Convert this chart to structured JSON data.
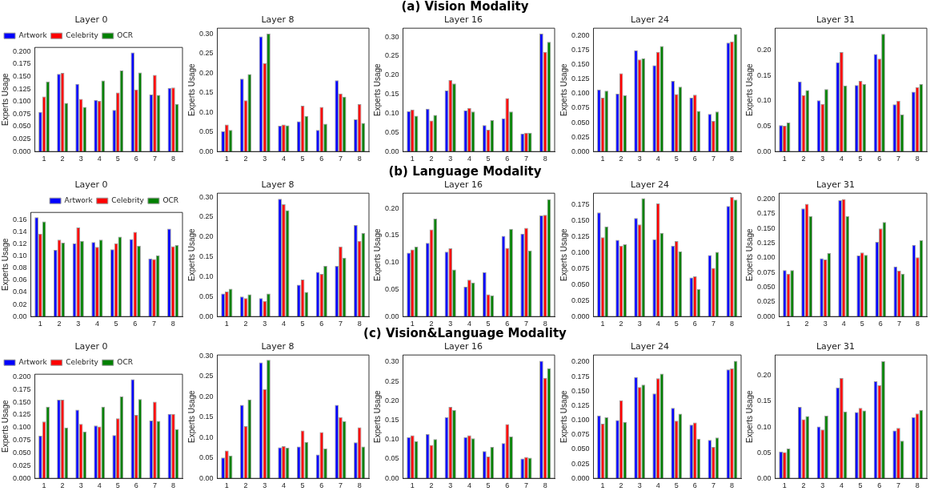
{
  "chart_data": [
    {
      "type": "bar",
      "title": "Layer 0",
      "ylabel": "Experts Usage",
      "categories": [
        "1",
        "2",
        "3",
        "4",
        "5",
        "6",
        "7",
        "8"
      ],
      "legend": "top left",
      "ylim": [
        0,
        0.208
      ],
      "yticks": [
        {
          "value": 0,
          "label": "0.000"
        },
        {
          "value": 0.025,
          "label": "0.025"
        },
        {
          "value": 0.05,
          "label": "0.050"
        },
        {
          "value": 0.075,
          "label": "0.075"
        },
        {
          "value": 0.1,
          "label": "0.100"
        },
        {
          "value": 0.125,
          "label": "0.125"
        },
        {
          "value": 0.15,
          "label": "0.150"
        },
        {
          "value": 0.175,
          "label": "0.175"
        },
        {
          "value": 0.2,
          "label": "0.200"
        }
      ],
      "series": [
        {
          "name": "Artwork",
          "color": "#0000ff",
          "values": [
            0.079,
            0.155,
            0.135,
            0.103,
            0.083,
            0.198,
            0.114,
            0.127
          ]
        },
        {
          "name": "Celebrity",
          "color": "#ff0000",
          "values": [
            0.11,
            0.157,
            0.105,
            0.101,
            0.118,
            0.124,
            0.153,
            0.128
          ]
        },
        {
          "name": "OCR",
          "color": "#008000",
          "values": [
            0.14,
            0.097,
            0.089,
            0.142,
            0.162,
            0.158,
            0.113,
            0.095
          ]
        }
      ]
    },
    {
      "type": "bar",
      "title": "Layer 8",
      "ylabel": "Experts Usage",
      "categories": [
        "1",
        "2",
        "3",
        "4",
        "5",
        "6",
        "7",
        "8"
      ],
      "ylim": [
        0,
        0.315
      ],
      "yticks": [
        {
          "value": 0,
          "label": "0.00"
        },
        {
          "value": 0.05,
          "label": "0.05"
        },
        {
          "value": 0.1,
          "label": "0.10"
        },
        {
          "value": 0.15,
          "label": "0.15"
        },
        {
          "value": 0.2,
          "label": "0.20"
        },
        {
          "value": 0.25,
          "label": "0.25"
        },
        {
          "value": 0.3,
          "label": "0.30"
        }
      ],
      "series": [
        {
          "color": "#0000ff",
          "values": [
            0.052,
            0.186,
            0.294,
            0.066,
            0.077,
            0.055,
            0.182,
            0.082
          ]
        },
        {
          "color": "#ff0000",
          "values": [
            0.069,
            0.131,
            0.226,
            0.069,
            0.117,
            0.114,
            0.148,
            0.121
          ]
        },
        {
          "color": "#008000",
          "values": [
            0.055,
            0.198,
            0.301,
            0.067,
            0.091,
            0.071,
            0.14,
            0.073
          ]
        }
      ]
    },
    {
      "type": "bar",
      "title": "Layer 16",
      "annotations": [
        "(a) Vision Modality"
      ],
      "ylabel": "Experts Usage",
      "categories": [
        "1",
        "2",
        "3",
        "4",
        "5",
        "6",
        "7",
        "8"
      ],
      "ylim": [
        0,
        0.323
      ],
      "yticks": [
        {
          "value": 0,
          "label": "0.00"
        },
        {
          "value": 0.05,
          "label": "0.05"
        },
        {
          "value": 0.1,
          "label": "0.10"
        },
        {
          "value": 0.15,
          "label": "0.15"
        },
        {
          "value": 0.2,
          "label": "0.20"
        },
        {
          "value": 0.25,
          "label": "0.25"
        },
        {
          "value": 0.3,
          "label": "0.30"
        }
      ],
      "series": [
        {
          "color": "#0000ff",
          "values": [
            0.106,
            0.112,
            0.16,
            0.108,
            0.069,
            0.087,
            0.047,
            0.309
          ]
        },
        {
          "color": "#ff0000",
          "values": [
            0.11,
            0.081,
            0.187,
            0.114,
            0.057,
            0.14,
            0.049,
            0.261
          ]
        },
        {
          "color": "#008000",
          "values": [
            0.094,
            0.096,
            0.178,
            0.105,
            0.082,
            0.105,
            0.049,
            0.287
          ]
        }
      ]
    },
    {
      "type": "bar",
      "title": "Layer 24",
      "ylabel": "Experts Usage",
      "categories": [
        "1",
        "2",
        "3",
        "4",
        "5",
        "6",
        "7",
        "8"
      ],
      "ylim": [
        0,
        0.213
      ],
      "yticks": [
        {
          "value": 0,
          "label": "0.000"
        },
        {
          "value": 0.025,
          "label": "0.025"
        },
        {
          "value": 0.05,
          "label": "0.050"
        },
        {
          "value": 0.075,
          "label": "0.075"
        },
        {
          "value": 0.1,
          "label": "0.100"
        },
        {
          "value": 0.125,
          "label": "0.125"
        },
        {
          "value": 0.15,
          "label": "0.150"
        },
        {
          "value": 0.175,
          "label": "0.175"
        },
        {
          "value": 0.2,
          "label": "0.200"
        }
      ],
      "series": [
        {
          "color": "#0000ff",
          "values": [
            0.107,
            0.1,
            0.175,
            0.149,
            0.122,
            0.093,
            0.065,
            0.188
          ]
        },
        {
          "color": "#ff0000",
          "values": [
            0.093,
            0.135,
            0.159,
            0.172,
            0.099,
            0.098,
            0.053,
            0.19
          ]
        },
        {
          "color": "#008000",
          "values": [
            0.105,
            0.097,
            0.161,
            0.182,
            0.112,
            0.07,
            0.069,
            0.203
          ]
        }
      ]
    },
    {
      "type": "bar",
      "title": "Layer 31",
      "ylabel": "Experts Usage",
      "categories": [
        "1",
        "2",
        "3",
        "4",
        "5",
        "6",
        "7",
        "8"
      ],
      "ylim": [
        0,
        0.243
      ],
      "yticks": [
        {
          "value": 0,
          "label": "0.00"
        },
        {
          "value": 0.05,
          "label": "0.05"
        },
        {
          "value": 0.1,
          "label": "0.10"
        },
        {
          "value": 0.15,
          "label": "0.15"
        },
        {
          "value": 0.2,
          "label": "0.20"
        }
      ],
      "series": [
        {
          "color": "#0000ff",
          "values": [
            0.052,
            0.138,
            0.101,
            0.176,
            0.131,
            0.192,
            0.093,
            0.118
          ]
        },
        {
          "color": "#ff0000",
          "values": [
            0.051,
            0.111,
            0.094,
            0.196,
            0.139,
            0.183,
            0.1,
            0.127
          ]
        },
        {
          "color": "#008000",
          "values": [
            0.057,
            0.121,
            0.123,
            0.13,
            0.133,
            0.232,
            0.073,
            0.133
          ]
        }
      ]
    },
    {
      "type": "bar",
      "title": "Layer 0",
      "ylabel": "Experts Usage",
      "categories": [
        "1",
        "2",
        "3",
        "4",
        "5",
        "6",
        "7",
        "8"
      ],
      "legend": "top right",
      "ylim": [
        0,
        0.172
      ],
      "yticks": [
        {
          "value": 0,
          "label": "0.00"
        },
        {
          "value": 0.02,
          "label": "0.02"
        },
        {
          "value": 0.04,
          "label": "0.04"
        },
        {
          "value": 0.06,
          "label": "0.06"
        },
        {
          "value": 0.08,
          "label": "0.08"
        },
        {
          "value": 0.1,
          "label": "0.10"
        },
        {
          "value": 0.12,
          "label": "0.12"
        },
        {
          "value": 0.14,
          "label": "0.14"
        },
        {
          "value": 0.16,
          "label": "0.16"
        }
      ],
      "series": [
        {
          "name": "Artwork",
          "color": "#0000ff",
          "values": [
            0.164,
            0.11,
            0.121,
            0.123,
            0.111,
            0.128,
            0.096,
            0.145
          ]
        },
        {
          "name": "Celebrity",
          "color": "#ff0000",
          "values": [
            0.137,
            0.127,
            0.147,
            0.115,
            0.121,
            0.14,
            0.095,
            0.116
          ]
        },
        {
          "name": "OCR",
          "color": "#008000",
          "values": [
            0.157,
            0.122,
            0.125,
            0.127,
            0.132,
            0.117,
            0.101,
            0.118
          ]
        }
      ]
    },
    {
      "type": "bar",
      "title": "Layer 8",
      "ylabel": "Experts Usage",
      "categories": [
        "1",
        "2",
        "3",
        "4",
        "5",
        "6",
        "7",
        "8"
      ],
      "ylim": [
        0,
        0.31
      ],
      "yticks": [
        {
          "value": 0,
          "label": "0.00"
        },
        {
          "value": 0.05,
          "label": "0.05"
        },
        {
          "value": 0.1,
          "label": "0.10"
        },
        {
          "value": 0.15,
          "label": "0.15"
        },
        {
          "value": 0.2,
          "label": "0.20"
        },
        {
          "value": 0.25,
          "label": "0.25"
        },
        {
          "value": 0.3,
          "label": "0.30"
        }
      ],
      "series": [
        {
          "color": "#0000ff",
          "values": [
            0.058,
            0.05,
            0.046,
            0.296,
            0.08,
            0.112,
            0.127,
            0.23
          ]
        },
        {
          "color": "#ff0000",
          "values": [
            0.063,
            0.046,
            0.039,
            0.282,
            0.093,
            0.107,
            0.176,
            0.19
          ]
        },
        {
          "color": "#008000",
          "values": [
            0.07,
            0.056,
            0.058,
            0.267,
            0.062,
            0.127,
            0.148,
            0.21
          ]
        }
      ]
    },
    {
      "type": "bar",
      "title": "Layer 16",
      "annotations": [
        "(b) Language Modality"
      ],
      "ylabel": "Experts Usage",
      "categories": [
        "1",
        "2",
        "3",
        "4",
        "5",
        "6",
        "7",
        "8"
      ],
      "ylim": [
        0,
        0.228
      ],
      "yticks": [
        {
          "value": 0,
          "label": "0.00"
        },
        {
          "value": 0.05,
          "label": "0.05"
        },
        {
          "value": 0.1,
          "label": "0.10"
        },
        {
          "value": 0.15,
          "label": "0.15"
        },
        {
          "value": 0.2,
          "label": "0.20"
        }
      ],
      "series": [
        {
          "color": "#0000ff",
          "values": [
            0.118,
            0.136,
            0.12,
            0.055,
            0.082,
            0.149,
            0.153,
            0.187
          ]
        },
        {
          "color": "#ff0000",
          "values": [
            0.124,
            0.161,
            0.126,
            0.068,
            0.041,
            0.127,
            0.164,
            0.188
          ]
        },
        {
          "color": "#008000",
          "values": [
            0.129,
            0.181,
            0.087,
            0.063,
            0.039,
            0.162,
            0.122,
            0.217
          ]
        }
      ]
    },
    {
      "type": "bar",
      "title": "Layer 24",
      "ylabel": "Experts Usage",
      "categories": [
        "1",
        "2",
        "3",
        "4",
        "5",
        "6",
        "7",
        "8"
      ],
      "ylim": [
        0,
        0.193
      ],
      "yticks": [
        {
          "value": 0,
          "label": "0.000"
        },
        {
          "value": 0.025,
          "label": "0.025"
        },
        {
          "value": 0.05,
          "label": "0.050"
        },
        {
          "value": 0.075,
          "label": "0.075"
        },
        {
          "value": 0.1,
          "label": "0.100"
        },
        {
          "value": 0.125,
          "label": "0.125"
        },
        {
          "value": 0.15,
          "label": "0.150"
        },
        {
          "value": 0.175,
          "label": "0.175"
        }
      ],
      "series": [
        {
          "color": "#0000ff",
          "values": [
            0.163,
            0.12,
            0.154,
            0.121,
            0.111,
            0.061,
            0.096,
            0.173
          ]
        },
        {
          "color": "#ff0000",
          "values": [
            0.124,
            0.111,
            0.144,
            0.177,
            0.118,
            0.063,
            0.076,
            0.187
          ]
        },
        {
          "color": "#008000",
          "values": [
            0.141,
            0.113,
            0.185,
            0.131,
            0.102,
            0.043,
            0.101,
            0.183
          ]
        }
      ]
    },
    {
      "type": "bar",
      "title": "Layer 31",
      "ylabel": "Experts Usage",
      "categories": [
        "1",
        "2",
        "3",
        "4",
        "5",
        "6",
        "7",
        "8"
      ],
      "ylim": [
        0,
        0.21
      ],
      "yticks": [
        {
          "value": 0,
          "label": "0.000"
        },
        {
          "value": 0.025,
          "label": "0.025"
        },
        {
          "value": 0.05,
          "label": "0.050"
        },
        {
          "value": 0.075,
          "label": "0.075"
        },
        {
          "value": 0.1,
          "label": "0.100"
        },
        {
          "value": 0.125,
          "label": "0.125"
        },
        {
          "value": 0.15,
          "label": "0.150"
        },
        {
          "value": 0.175,
          "label": "0.175"
        },
        {
          "value": 0.2,
          "label": "0.200"
        }
      ],
      "series": [
        {
          "color": "#0000ff",
          "values": [
            0.079,
            0.184,
            0.099,
            0.198,
            0.104,
            0.127,
            0.085,
            0.122
          ]
        },
        {
          "color": "#ff0000",
          "values": [
            0.073,
            0.192,
            0.097,
            0.2,
            0.109,
            0.15,
            0.078,
            0.101
          ]
        },
        {
          "color": "#008000",
          "values": [
            0.079,
            0.171,
            0.108,
            0.171,
            0.105,
            0.161,
            0.073,
            0.13
          ]
        }
      ]
    },
    {
      "type": "bar",
      "title": "Layer 0",
      "ylabel": "Experts Usage",
      "categories": [
        "1",
        "2",
        "3",
        "4",
        "5",
        "6",
        "7",
        "8"
      ],
      "legend": "top left",
      "ylim": [
        0,
        0.205
      ],
      "yticks": [
        {
          "value": 0,
          "label": "0.000"
        },
        {
          "value": 0.025,
          "label": "0.025"
        },
        {
          "value": 0.05,
          "label": "0.050"
        },
        {
          "value": 0.075,
          "label": "0.075"
        },
        {
          "value": 0.1,
          "label": "0.100"
        },
        {
          "value": 0.125,
          "label": "0.125"
        },
        {
          "value": 0.15,
          "label": "0.150"
        },
        {
          "value": 0.175,
          "label": "0.175"
        },
        {
          "value": 0.2,
          "label": "0.200"
        }
      ],
      "series": [
        {
          "name": "Artwork",
          "color": "#0000ff",
          "values": [
            0.084,
            0.155,
            0.135,
            0.104,
            0.085,
            0.195,
            0.114,
            0.127
          ]
        },
        {
          "name": "Celebrity",
          "color": "#ff0000",
          "values": [
            0.112,
            0.155,
            0.107,
            0.102,
            0.118,
            0.125,
            0.151,
            0.127
          ]
        },
        {
          "name": "OCR",
          "color": "#008000",
          "values": [
            0.141,
            0.1,
            0.092,
            0.141,
            0.161,
            0.156,
            0.113,
            0.097
          ]
        }
      ]
    },
    {
      "type": "bar",
      "title": "Layer 8",
      "ylabel": "Experts Usage",
      "categories": [
        "1",
        "2",
        "3",
        "4",
        "5",
        "6",
        "7",
        "8"
      ],
      "ylim": [
        0,
        0.302
      ],
      "yticks": [
        {
          "value": 0,
          "label": "0.00"
        },
        {
          "value": 0.05,
          "label": "0.05"
        },
        {
          "value": 0.1,
          "label": "0.10"
        },
        {
          "value": 0.15,
          "label": "0.15"
        },
        {
          "value": 0.2,
          "label": "0.20"
        },
        {
          "value": 0.25,
          "label": "0.25"
        },
        {
          "value": 0.3,
          "label": "0.30"
        }
      ],
      "series": [
        {
          "color": "#0000ff",
          "values": [
            0.051,
            0.18,
            0.284,
            0.076,
            0.078,
            0.058,
            0.18,
            0.088
          ]
        },
        {
          "color": "#ff0000",
          "values": [
            0.068,
            0.128,
            0.218,
            0.079,
            0.117,
            0.113,
            0.15,
            0.125
          ]
        },
        {
          "color": "#008000",
          "values": [
            0.056,
            0.193,
            0.29,
            0.075,
            0.089,
            0.073,
            0.14,
            0.078
          ]
        }
      ]
    },
    {
      "type": "bar",
      "title": "Layer 16",
      "annotations": [
        "(c) Vision&Language Modality"
      ],
      "ylabel": "Experts Usage",
      "categories": [
        "1",
        "2",
        "3",
        "4",
        "5",
        "6",
        "7",
        "8"
      ],
      "ylim": [
        0,
        0.318
      ],
      "yticks": [
        {
          "value": 0,
          "label": "0.00"
        },
        {
          "value": 0.05,
          "label": "0.05"
        },
        {
          "value": 0.1,
          "label": "0.10"
        },
        {
          "value": 0.15,
          "label": "0.15"
        },
        {
          "value": 0.2,
          "label": "0.20"
        },
        {
          "value": 0.25,
          "label": "0.25"
        },
        {
          "value": 0.3,
          "label": "0.30"
        }
      ],
      "series": [
        {
          "color": "#0000ff",
          "values": [
            0.106,
            0.114,
            0.158,
            0.106,
            0.07,
            0.091,
            0.051,
            0.303
          ]
        },
        {
          "color": "#ff0000",
          "values": [
            0.111,
            0.086,
            0.184,
            0.111,
            0.056,
            0.14,
            0.055,
            0.259
          ]
        },
        {
          "color": "#008000",
          "values": [
            0.096,
            0.101,
            0.176,
            0.103,
            0.081,
            0.108,
            0.053,
            0.284
          ]
        }
      ]
    },
    {
      "type": "bar",
      "title": "Layer 24",
      "ylabel": "Experts Usage",
      "categories": [
        "1",
        "2",
        "3",
        "4",
        "5",
        "6",
        "7",
        "8"
      ],
      "ylim": [
        0,
        0.212
      ],
      "yticks": [
        {
          "value": 0,
          "label": "0.000"
        },
        {
          "value": 0.025,
          "label": "0.025"
        },
        {
          "value": 0.05,
          "label": "0.050"
        },
        {
          "value": 0.075,
          "label": "0.075"
        },
        {
          "value": 0.1,
          "label": "0.100"
        },
        {
          "value": 0.125,
          "label": "0.125"
        },
        {
          "value": 0.15,
          "label": "0.150"
        },
        {
          "value": 0.175,
          "label": "0.175"
        },
        {
          "value": 0.2,
          "label": "0.200"
        }
      ],
      "series": [
        {
          "color": "#0000ff",
          "values": [
            0.108,
            0.1,
            0.174,
            0.146,
            0.121,
            0.092,
            0.066,
            0.187
          ]
        },
        {
          "color": "#ff0000",
          "values": [
            0.094,
            0.134,
            0.157,
            0.172,
            0.099,
            0.096,
            0.054,
            0.189
          ]
        },
        {
          "color": "#008000",
          "values": [
            0.105,
            0.097,
            0.161,
            0.18,
            0.111,
            0.068,
            0.07,
            0.202
          ]
        }
      ]
    },
    {
      "type": "bar",
      "title": "Layer 31",
      "ylabel": "Experts Usage",
      "categories": [
        "1",
        "2",
        "3",
        "4",
        "5",
        "6",
        "7",
        "8"
      ],
      "ylim": [
        0,
        0.24
      ],
      "yticks": [
        {
          "value": 0,
          "label": "0.00"
        },
        {
          "value": 0.05,
          "label": "0.05"
        },
        {
          "value": 0.1,
          "label": "0.10"
        },
        {
          "value": 0.15,
          "label": "0.15"
        },
        {
          "value": 0.2,
          "label": "0.20"
        }
      ],
      "series": [
        {
          "color": "#0000ff",
          "values": [
            0.052,
            0.139,
            0.101,
            0.177,
            0.129,
            0.189,
            0.093,
            0.119
          ]
        },
        {
          "color": "#ff0000",
          "values": [
            0.051,
            0.115,
            0.095,
            0.195,
            0.137,
            0.181,
            0.098,
            0.126
          ]
        },
        {
          "color": "#008000",
          "values": [
            0.058,
            0.121,
            0.122,
            0.13,
            0.132,
            0.228,
            0.073,
            0.133
          ]
        }
      ]
    }
  ]
}
